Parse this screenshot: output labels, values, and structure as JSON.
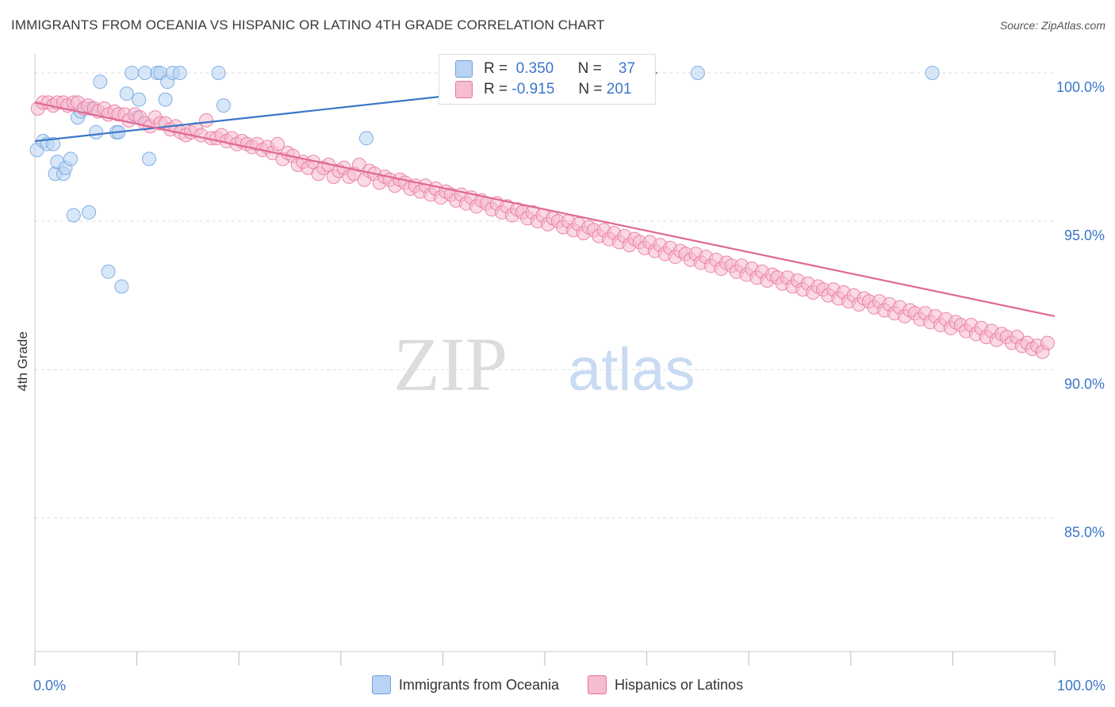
{
  "title": "IMMIGRANTS FROM OCEANIA VS HISPANIC OR LATINO 4TH GRADE CORRELATION CHART",
  "source": "Source: ZipAtlas.com",
  "watermark": {
    "zip": "ZIP",
    "atlas": "atlas"
  },
  "colors": {
    "blue": "#6fa3df",
    "blue_fill": "#b8d3f3",
    "blue_line": "#3a76c8",
    "pink": "#e9749d",
    "pink_fill": "#f6bccf",
    "pink_line": "#e06894",
    "axis_text": "#3a76c8",
    "grid": "#dddddd"
  },
  "stats": {
    "blue": {
      "r_label": "R =",
      "r_value": "0.350",
      "n_label": "N =",
      "n_value": "37"
    },
    "pink": {
      "r_label": "R =",
      "r_value": "-0.915",
      "n_label": "N =",
      "n_value": "201"
    }
  },
  "legend": [
    {
      "name": "Immigrants from Oceania",
      "color": "blue"
    },
    {
      "name": "Hispanics or Latinos",
      "color": "pink"
    }
  ],
  "chart_data": {
    "type": "scatter",
    "ylabel": "4th Grade",
    "xlim": [
      0,
      100
    ],
    "ylim": [
      80.5,
      100.8
    ],
    "x_tick_labels": [
      {
        "x": 0,
        "label": "0.0%"
      },
      {
        "x": 100,
        "label": "100.0%"
      }
    ],
    "y_ticks": [
      {
        "y": 100,
        "label": "100.0%"
      },
      {
        "y": 95,
        "label": "95.0%"
      },
      {
        "y": 90,
        "label": "90.0%"
      },
      {
        "y": 85,
        "label": "85.0%"
      }
    ],
    "x_minor_ticks": [
      0,
      10,
      20,
      30,
      40,
      50,
      60,
      70,
      80,
      90,
      100
    ],
    "series": [
      {
        "name": "Immigrants from Oceania",
        "color": "blue",
        "trend": {
          "x1": 0,
          "y1": 97.7,
          "x2": 61,
          "y2": 100.0
        },
        "points": [
          [
            0.2,
            97.4
          ],
          [
            0.8,
            97.7
          ],
          [
            1.2,
            97.6
          ],
          [
            1.8,
            97.6
          ],
          [
            2.0,
            96.6
          ],
          [
            2.2,
            97.0
          ],
          [
            2.8,
            96.6
          ],
          [
            3.0,
            96.8
          ],
          [
            3.5,
            97.1
          ],
          [
            3.8,
            95.2
          ],
          [
            4.2,
            98.5
          ],
          [
            4.5,
            98.7
          ],
          [
            5.3,
            95.3
          ],
          [
            5.5,
            98.8
          ],
          [
            6.0,
            98.0
          ],
          [
            6.4,
            99.7
          ],
          [
            7.2,
            93.3
          ],
          [
            8.0,
            98.0
          ],
          [
            8.2,
            98.0
          ],
          [
            8.5,
            92.8
          ],
          [
            9.0,
            99.3
          ],
          [
            9.5,
            100.0
          ],
          [
            10.0,
            98.5
          ],
          [
            10.2,
            99.1
          ],
          [
            10.8,
            100.0
          ],
          [
            11.2,
            97.1
          ],
          [
            12.0,
            100.0
          ],
          [
            12.3,
            100.0
          ],
          [
            12.8,
            99.1
          ],
          [
            13.0,
            99.7
          ],
          [
            13.5,
            100.0
          ],
          [
            14.2,
            100.0
          ],
          [
            18.0,
            100.0
          ],
          [
            18.5,
            98.9
          ],
          [
            32.5,
            97.8
          ],
          [
            65.0,
            100.0
          ],
          [
            88.0,
            100.0
          ]
        ]
      },
      {
        "name": "Hispanics or Latinos",
        "color": "pink",
        "trend": {
          "x1": 0,
          "y1": 99.0,
          "x2": 100,
          "y2": 91.8
        },
        "points": [
          [
            0.3,
            98.8
          ],
          [
            0.8,
            99.0
          ],
          [
            1.3,
            99.0
          ],
          [
            1.8,
            98.9
          ],
          [
            2.2,
            99.0
          ],
          [
            2.8,
            99.0
          ],
          [
            3.2,
            98.9
          ],
          [
            3.8,
            99.0
          ],
          [
            4.2,
            99.0
          ],
          [
            4.8,
            98.8
          ],
          [
            5.2,
            98.9
          ],
          [
            5.8,
            98.8
          ],
          [
            6.2,
            98.7
          ],
          [
            6.8,
            98.8
          ],
          [
            7.2,
            98.6
          ],
          [
            7.8,
            98.7
          ],
          [
            8.2,
            98.6
          ],
          [
            8.8,
            98.6
          ],
          [
            9.2,
            98.4
          ],
          [
            9.8,
            98.6
          ],
          [
            10.3,
            98.5
          ],
          [
            10.8,
            98.3
          ],
          [
            11.3,
            98.2
          ],
          [
            11.8,
            98.5
          ],
          [
            12.3,
            98.3
          ],
          [
            12.8,
            98.3
          ],
          [
            13.3,
            98.1
          ],
          [
            13.8,
            98.2
          ],
          [
            14.3,
            98.0
          ],
          [
            14.8,
            97.9
          ],
          [
            15.3,
            98.0
          ],
          [
            15.8,
            98.1
          ],
          [
            16.3,
            97.9
          ],
          [
            16.8,
            98.4
          ],
          [
            17.3,
            97.8
          ],
          [
            17.8,
            97.8
          ],
          [
            18.3,
            97.9
          ],
          [
            18.8,
            97.7
          ],
          [
            19.3,
            97.8
          ],
          [
            19.8,
            97.6
          ],
          [
            20.3,
            97.7
          ],
          [
            20.8,
            97.6
          ],
          [
            21.3,
            97.5
          ],
          [
            21.8,
            97.6
          ],
          [
            22.3,
            97.4
          ],
          [
            22.8,
            97.5
          ],
          [
            23.3,
            97.3
          ],
          [
            23.8,
            97.6
          ],
          [
            24.3,
            97.1
          ],
          [
            24.8,
            97.3
          ],
          [
            25.3,
            97.2
          ],
          [
            25.8,
            96.9
          ],
          [
            26.3,
            97.0
          ],
          [
            26.8,
            96.8
          ],
          [
            27.3,
            97.0
          ],
          [
            27.8,
            96.6
          ],
          [
            28.3,
            96.8
          ],
          [
            28.8,
            96.9
          ],
          [
            29.3,
            96.5
          ],
          [
            29.8,
            96.7
          ],
          [
            30.3,
            96.8
          ],
          [
            30.8,
            96.5
          ],
          [
            31.3,
            96.6
          ],
          [
            31.8,
            96.9
          ],
          [
            32.3,
            96.4
          ],
          [
            32.8,
            96.7
          ],
          [
            33.3,
            96.6
          ],
          [
            33.8,
            96.3
          ],
          [
            34.3,
            96.5
          ],
          [
            34.8,
            96.4
          ],
          [
            35.3,
            96.2
          ],
          [
            35.8,
            96.4
          ],
          [
            36.3,
            96.3
          ],
          [
            36.8,
            96.1
          ],
          [
            37.3,
            96.2
          ],
          [
            37.8,
            96.0
          ],
          [
            38.3,
            96.2
          ],
          [
            38.8,
            95.9
          ],
          [
            39.3,
            96.1
          ],
          [
            39.8,
            95.8
          ],
          [
            40.3,
            96.0
          ],
          [
            40.8,
            95.9
          ],
          [
            41.3,
            95.7
          ],
          [
            41.8,
            95.9
          ],
          [
            42.3,
            95.6
          ],
          [
            42.8,
            95.8
          ],
          [
            43.3,
            95.5
          ],
          [
            43.8,
            95.7
          ],
          [
            44.3,
            95.6
          ],
          [
            44.8,
            95.4
          ],
          [
            45.3,
            95.6
          ],
          [
            45.8,
            95.3
          ],
          [
            46.3,
            95.5
          ],
          [
            46.8,
            95.2
          ],
          [
            47.3,
            95.4
          ],
          [
            47.8,
            95.3
          ],
          [
            48.3,
            95.1
          ],
          [
            48.8,
            95.3
          ],
          [
            49.3,
            95.0
          ],
          [
            49.8,
            95.2
          ],
          [
            50.3,
            94.9
          ],
          [
            50.8,
            95.1
          ],
          [
            51.3,
            95.0
          ],
          [
            51.8,
            94.8
          ],
          [
            52.3,
            95.0
          ],
          [
            52.8,
            94.7
          ],
          [
            53.3,
            94.9
          ],
          [
            53.8,
            94.6
          ],
          [
            54.3,
            94.8
          ],
          [
            54.8,
            94.7
          ],
          [
            55.3,
            94.5
          ],
          [
            55.8,
            94.7
          ],
          [
            56.3,
            94.4
          ],
          [
            56.8,
            94.6
          ],
          [
            57.3,
            94.3
          ],
          [
            57.8,
            94.5
          ],
          [
            58.3,
            94.2
          ],
          [
            58.8,
            94.4
          ],
          [
            59.3,
            94.3
          ],
          [
            59.8,
            94.1
          ],
          [
            60.3,
            94.3
          ],
          [
            60.8,
            94.0
          ],
          [
            61.3,
            94.2
          ],
          [
            61.8,
            93.9
          ],
          [
            62.3,
            94.1
          ],
          [
            62.8,
            93.8
          ],
          [
            63.3,
            94.0
          ],
          [
            63.8,
            93.9
          ],
          [
            64.3,
            93.7
          ],
          [
            64.8,
            93.9
          ],
          [
            65.3,
            93.6
          ],
          [
            65.8,
            93.8
          ],
          [
            66.3,
            93.5
          ],
          [
            66.8,
            93.7
          ],
          [
            67.3,
            93.4
          ],
          [
            67.8,
            93.6
          ],
          [
            68.3,
            93.5
          ],
          [
            68.8,
            93.3
          ],
          [
            69.3,
            93.5
          ],
          [
            69.8,
            93.2
          ],
          [
            70.3,
            93.4
          ],
          [
            70.8,
            93.1
          ],
          [
            71.3,
            93.3
          ],
          [
            71.8,
            93.0
          ],
          [
            72.3,
            93.2
          ],
          [
            72.8,
            93.1
          ],
          [
            73.3,
            92.9
          ],
          [
            73.8,
            93.1
          ],
          [
            74.3,
            92.8
          ],
          [
            74.8,
            93.0
          ],
          [
            75.3,
            92.7
          ],
          [
            75.8,
            92.9
          ],
          [
            76.3,
            92.6
          ],
          [
            76.8,
            92.8
          ],
          [
            77.3,
            92.7
          ],
          [
            77.8,
            92.5
          ],
          [
            78.3,
            92.7
          ],
          [
            78.8,
            92.4
          ],
          [
            79.3,
            92.6
          ],
          [
            79.8,
            92.3
          ],
          [
            80.3,
            92.5
          ],
          [
            80.8,
            92.2
          ],
          [
            81.3,
            92.4
          ],
          [
            81.8,
            92.3
          ],
          [
            82.3,
            92.1
          ],
          [
            82.8,
            92.3
          ],
          [
            83.3,
            92.0
          ],
          [
            83.8,
            92.2
          ],
          [
            84.3,
            91.9
          ],
          [
            84.8,
            92.1
          ],
          [
            85.3,
            91.8
          ],
          [
            85.8,
            92.0
          ],
          [
            86.3,
            91.9
          ],
          [
            86.8,
            91.7
          ],
          [
            87.3,
            91.9
          ],
          [
            87.8,
            91.6
          ],
          [
            88.3,
            91.8
          ],
          [
            88.8,
            91.5
          ],
          [
            89.3,
            91.7
          ],
          [
            89.8,
            91.4
          ],
          [
            90.3,
            91.6
          ],
          [
            90.8,
            91.5
          ],
          [
            91.3,
            91.3
          ],
          [
            91.8,
            91.5
          ],
          [
            92.3,
            91.2
          ],
          [
            92.8,
            91.4
          ],
          [
            93.3,
            91.1
          ],
          [
            93.8,
            91.3
          ],
          [
            94.3,
            91.0
          ],
          [
            94.8,
            91.2
          ],
          [
            95.3,
            91.1
          ],
          [
            95.8,
            90.9
          ],
          [
            96.3,
            91.1
          ],
          [
            96.8,
            90.8
          ],
          [
            97.3,
            90.9
          ],
          [
            97.8,
            90.7
          ],
          [
            98.3,
            90.8
          ],
          [
            98.8,
            90.6
          ],
          [
            99.3,
            90.9
          ]
        ]
      }
    ]
  }
}
